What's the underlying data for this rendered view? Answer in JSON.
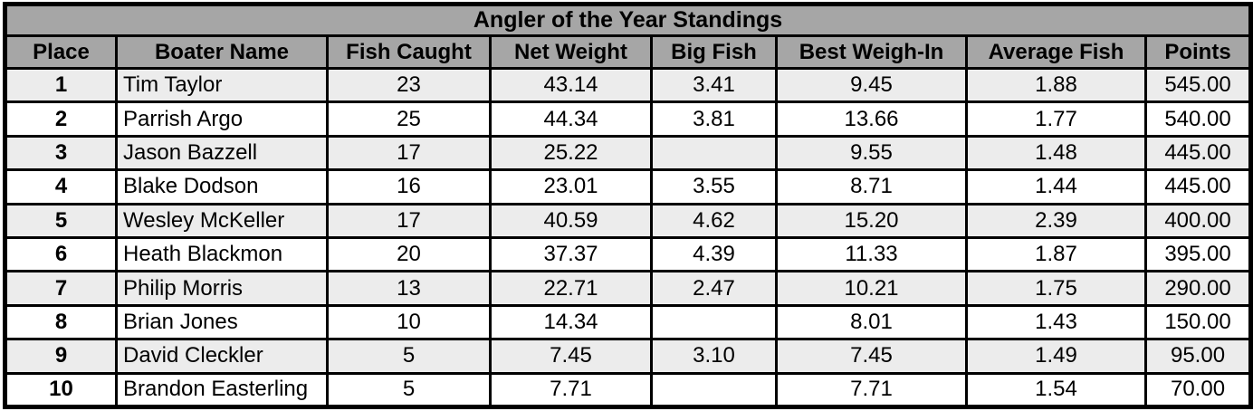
{
  "chart_data": {
    "type": "table",
    "title": "Angler of the Year Standings",
    "columns": [
      "Place",
      "Boater Name",
      "Fish Caught",
      "Net Weight",
      "Big Fish",
      "Best Weigh-In",
      "Average Fish",
      "Points"
    ],
    "rows": [
      [
        "1",
        "Tim Taylor",
        "23",
        "43.14",
        "3.41",
        "9.45",
        "1.88",
        "545.00"
      ],
      [
        "2",
        "Parrish Argo",
        "25",
        "44.34",
        "3.81",
        "13.66",
        "1.77",
        "540.00"
      ],
      [
        "3",
        "Jason Bazzell",
        "17",
        "25.22",
        "",
        "9.55",
        "1.48",
        "445.00"
      ],
      [
        "4",
        "Blake Dodson",
        "16",
        "23.01",
        "3.55",
        "8.71",
        "1.44",
        "445.00"
      ],
      [
        "5",
        "Wesley McKeller",
        "17",
        "40.59",
        "4.62",
        "15.20",
        "2.39",
        "400.00"
      ],
      [
        "6",
        "Heath Blackmon",
        "20",
        "37.37",
        "4.39",
        "11.33",
        "1.87",
        "395.00"
      ],
      [
        "7",
        "Philip Morris",
        "13",
        "22.71",
        "2.47",
        "10.21",
        "1.75",
        "290.00"
      ],
      [
        "8",
        "Brian Jones",
        "10",
        "14.34",
        "",
        "8.01",
        "1.43",
        "150.00"
      ],
      [
        "9",
        "David Cleckler",
        "5",
        "7.45",
        "3.10",
        "7.45",
        "1.49",
        "95.00"
      ],
      [
        "10",
        "Brandon Easterling",
        "5",
        "7.71",
        "",
        "7.71",
        "1.54",
        "70.00"
      ]
    ],
    "layout": {
      "legend": "none",
      "grid": "all-borders",
      "banded_rows": true
    }
  },
  "colors": {
    "header_bg": "#a6a6a6",
    "band_bg": "#ececec",
    "row_bg": "#ffffff",
    "border": "#000000",
    "text": "#000000"
  }
}
